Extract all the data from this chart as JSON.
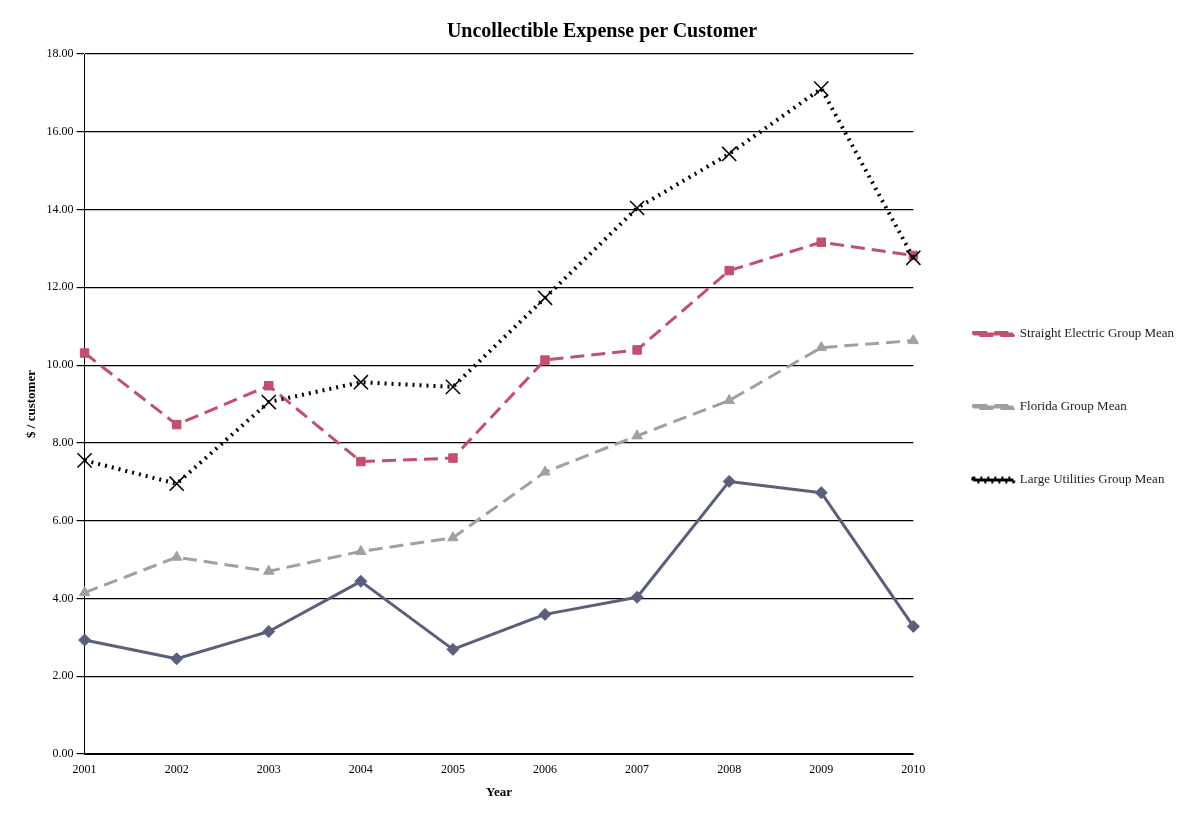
{
  "chart_data": {
    "type": "line",
    "title": "Uncollectible Expense per Customer",
    "xlabel": "Year",
    "ylabel": "$ / customer",
    "categories": [
      "2001",
      "2002",
      "2003",
      "2004",
      "2005",
      "2006",
      "2007",
      "2008",
      "2009",
      "2010"
    ],
    "series": [
      {
        "color": "#5a5f7a",
        "marker": "diamond",
        "line_style": "solid",
        "values": [
          2.93,
          2.45,
          3.15,
          4.44,
          2.69,
          3.59,
          4.03,
          7.01,
          6.72,
          3.28
        ]
      },
      {
        "name": "Straight Electric Group Mean",
        "color": "#c0506e",
        "marker": "square",
        "line_style": "dashed",
        "values": [
          10.31,
          8.47,
          9.47,
          7.52,
          7.61,
          10.13,
          10.39,
          12.43,
          13.16,
          12.82
        ]
      },
      {
        "name": "Florida Group Mean",
        "color": "#a0a0a0",
        "marker": "triangle",
        "line_style": "dashed",
        "values": [
          4.15,
          5.06,
          4.7,
          5.21,
          5.56,
          7.25,
          8.18,
          9.09,
          10.45,
          10.63
        ]
      },
      {
        "name": "Large Utilities Group Mean",
        "color": "#000000",
        "marker": "cross",
        "line_style": "dotted",
        "values": [
          7.55,
          6.95,
          9.05,
          9.56,
          9.44,
          11.73,
          14.04,
          15.43,
          17.11,
          12.76
        ]
      }
    ],
    "ylim": [
      0,
      18
    ],
    "yticks": [
      {
        "value": 0,
        "label": "0.00"
      },
      {
        "value": 2,
        "label": "2.00"
      },
      {
        "value": 4,
        "label": "4.00"
      },
      {
        "value": 6,
        "label": "6.00"
      },
      {
        "value": 8,
        "label": "8.00"
      },
      {
        "value": 10,
        "label": "10.00"
      },
      {
        "value": 12,
        "label": "12.00"
      },
      {
        "value": 14,
        "label": "14.00"
      },
      {
        "value": 16,
        "label": "16.00"
      },
      {
        "value": 18,
        "label": "18.00"
      }
    ],
    "grid": "y",
    "legend": "right"
  }
}
